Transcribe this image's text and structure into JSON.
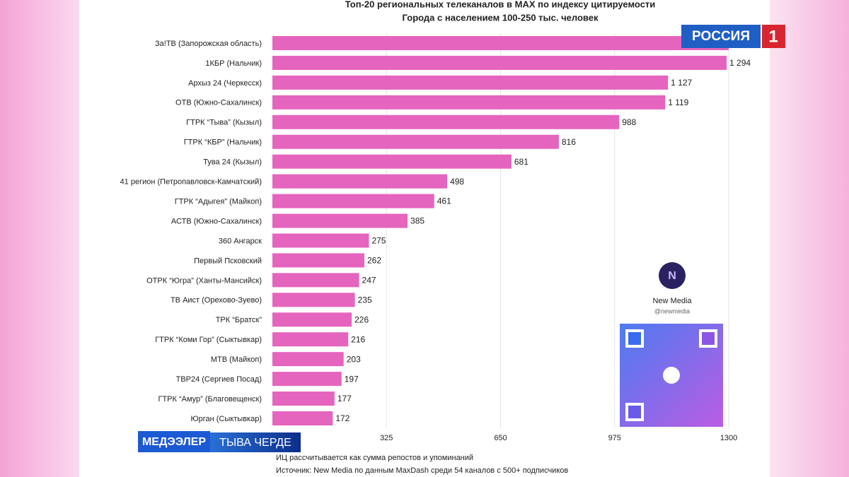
{
  "chart_data": {
    "type": "barh",
    "title": "Топ-20 региональных телеканалов в MAX по индексу цитируемости",
    "subtitle": "Города с населением 100-250 тыс. человек",
    "categories": [
      "За!ТВ (Запорожская область)",
      "1КБР (Нальчик)",
      "Архыз 24 (Черкесск)",
      "ОТВ (Южно-Сахалинск)",
      "ГТРК “Тыва” (Кызыл)",
      "ГТРК “КБР” (Нальчик)",
      "Тува 24 (Кызыл)",
      "41 регион (Петропавловск-Камчатский)",
      "ГТРК “Адыгея” (Майкоп)",
      "АСТВ (Южно-Сахалинск)",
      "360 Ангарск",
      "Первый Псковский",
      "ОТРК “Югра” (Ханты-Мансийск)",
      "ТВ Аист (Орехово-Зуево)",
      "ТРК “Братск”",
      "ГТРК “Коми Гор” (Сыктывкар)",
      "МТВ (Майкоп)",
      "ТВР24 (Сергиев Посад)",
      "ГТРК “Амур” (Благовещенск)",
      "Юрган (Сыктывкар)"
    ],
    "values": [
      1300,
      1294,
      1127,
      1119,
      988,
      816,
      681,
      498,
      461,
      385,
      275,
      262,
      247,
      235,
      226,
      216,
      203,
      197,
      177,
      172
    ],
    "value_labels": [
      null,
      "1 294",
      "1 127",
      "1 119",
      "988",
      "816",
      "681",
      "498",
      "461",
      "385",
      "275",
      "262",
      "247",
      "235",
      "226",
      "216",
      "203",
      "197",
      "177",
      "172"
    ],
    "color": "#e564be",
    "xlim": [
      0,
      1300
    ],
    "xticks": [
      325,
      650,
      975,
      1300
    ],
    "grid": true,
    "notes": [
      "ИЦ рассчитывается как сумма репостов и упоминаний",
      "Источник: New Media по данным MaxDash среди 54 каналов с 500+ подписчиков"
    ]
  },
  "channel_logo": {
    "name": "РОССИЯ",
    "number": "1"
  },
  "ticker": {
    "program": "МЕДЭЭЛЕР",
    "channel": "ТЫВА ЧЕРДЕ"
  },
  "qr_card": {
    "name": "New Media",
    "handle": "@newmedia"
  }
}
